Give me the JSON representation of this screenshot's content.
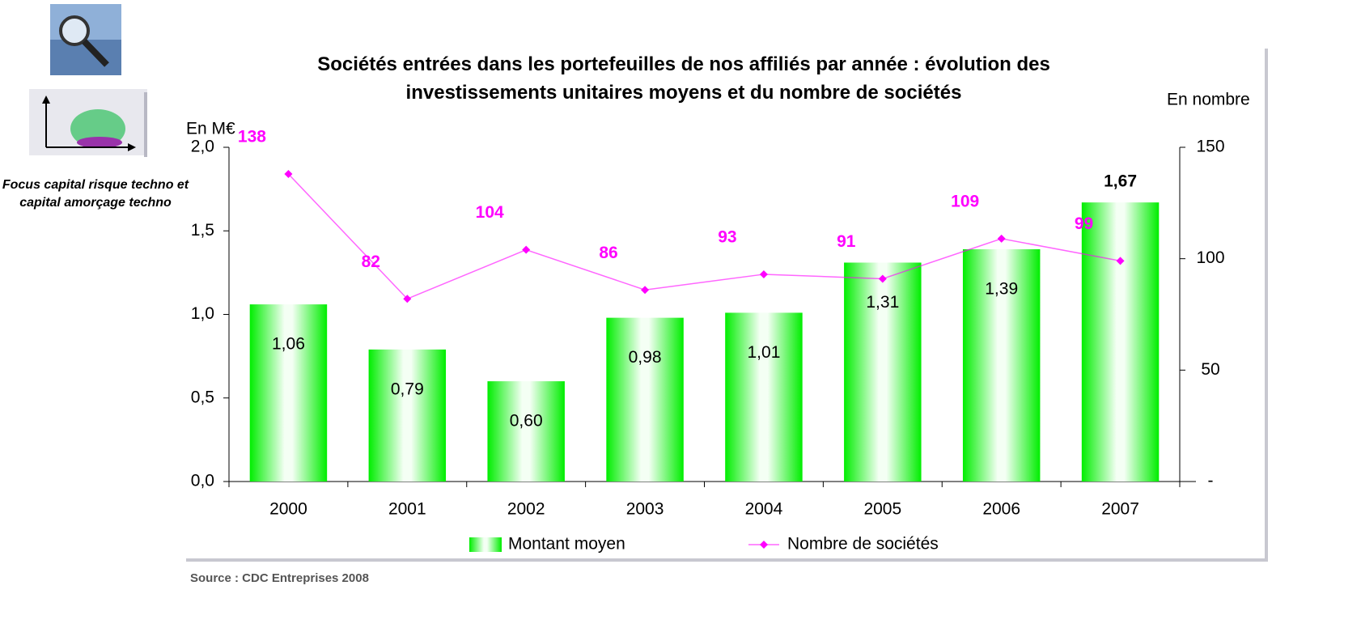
{
  "chart_data": {
    "type": "bar",
    "title": "Sociétés entrées dans les portefeuilles de nos affiliés par année : évolution des investissements unitaires moyens et du nombre de sociétés",
    "y_label": "En M€",
    "y2_label": "En nombre",
    "side_note": "Focus capital risque techno et capital amorçage techno",
    "source": "Source : CDC Entreprises 2008",
    "categories": [
      "2000",
      "2001",
      "2002",
      "2003",
      "2004",
      "2005",
      "2006",
      "2007"
    ],
    "series": [
      {
        "name": "Montant moyen",
        "type": "bar",
        "color": "#00ee00",
        "values": [
          1.06,
          0.79,
          0.6,
          0.98,
          1.01,
          1.31,
          1.39,
          1.67
        ],
        "value_labels": [
          "1,06",
          "0,79",
          "0,60",
          "0,98",
          "1,01",
          "1,31",
          "1,39",
          "1,67"
        ]
      },
      {
        "name": "Nombre de sociétés",
        "type": "line",
        "axis": "y2",
        "color": "#ff00ff",
        "values": [
          138,
          82,
          104,
          86,
          93,
          91,
          109,
          99
        ]
      }
    ],
    "ylim": [
      0,
      2
    ],
    "yticks": [
      {
        "value": 0,
        "label": "0,0"
      },
      {
        "value": 0.5,
        "label": "0,5"
      },
      {
        "value": 1,
        "label": "1,0"
      },
      {
        "value": 1.5,
        "label": "1,5"
      },
      {
        "value": 2,
        "label": "2,0"
      }
    ],
    "y2lim": [
      0,
      150
    ],
    "y2ticks": [
      {
        "value": 0,
        "label": "-"
      },
      50,
      100,
      150
    ],
    "grid": false,
    "legend": "bottom"
  }
}
